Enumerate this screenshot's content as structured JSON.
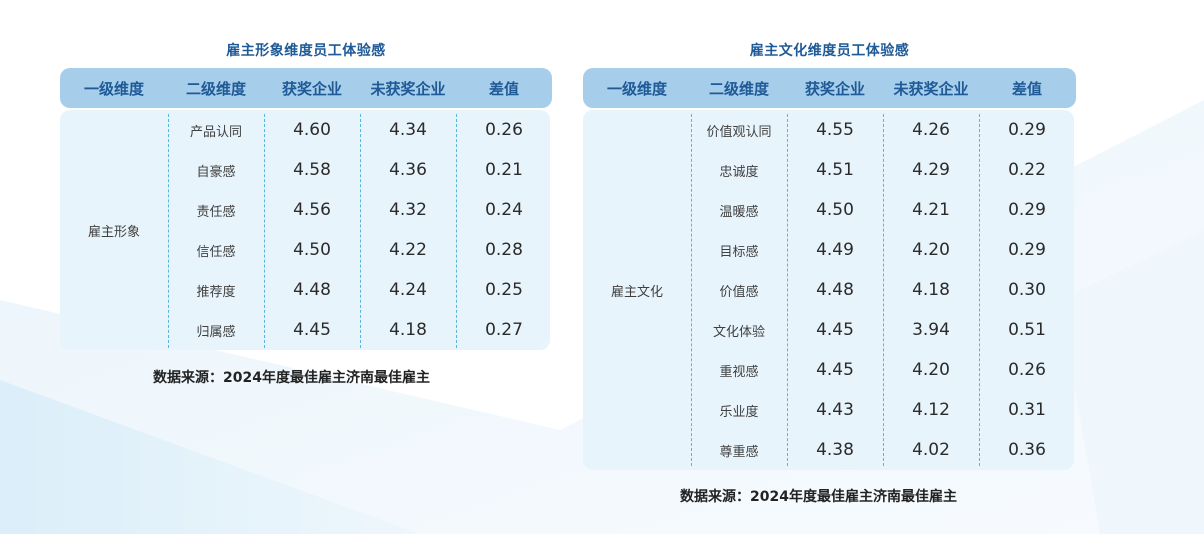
{
  "left": {
    "title": "雇主形象维度员工体验感",
    "headers": [
      "一级维度",
      "二级维度",
      "获奖企业",
      "未获奖企业",
      "差值"
    ],
    "primary": "雇主形象",
    "rows": [
      [
        "产品认同",
        "4.60",
        "4.34",
        "0.26"
      ],
      [
        "自豪感",
        "4.58",
        "4.36",
        "0.21"
      ],
      [
        "责任感",
        "4.56",
        "4.32",
        "0.24"
      ],
      [
        "信任感",
        "4.50",
        "4.22",
        "0.28"
      ],
      [
        "推荐度",
        "4.48",
        "4.24",
        "0.25"
      ],
      [
        "归属感",
        "4.45",
        "4.18",
        "0.27"
      ]
    ],
    "source": "数据来源：2024年度最佳雇主济南最佳雇主"
  },
  "right": {
    "title": "雇主文化维度员工体验感",
    "headers": [
      "一级维度",
      "二级维度",
      "获奖企业",
      "未获奖企业",
      "差值"
    ],
    "primary": "雇主文化",
    "rows": [
      [
        "价值观认同",
        "4.55",
        "4.26",
        "0.29"
      ],
      [
        "忠诚度",
        "4.51",
        "4.29",
        "0.22"
      ],
      [
        "温暖感",
        "4.50",
        "4.21",
        "0.29"
      ],
      [
        "目标感",
        "4.49",
        "4.20",
        "0.29"
      ],
      [
        "价值感",
        "4.48",
        "4.18",
        "0.30"
      ],
      [
        "文化体验",
        "4.45",
        "3.94",
        "0.51"
      ],
      [
        "重视感",
        "4.45",
        "4.20",
        "0.26"
      ],
      [
        "乐业度",
        "4.43",
        "4.12",
        "0.31"
      ],
      [
        "尊重感",
        "4.38",
        "4.02",
        "0.36"
      ]
    ],
    "source": "数据来源：2024年度最佳雇主济南最佳雇主"
  },
  "colors": {
    "header_bg": "#a6cdea",
    "header_text": "#1f5a97",
    "body_bg": "#e8f4fb",
    "divider": "#58b6dd"
  }
}
